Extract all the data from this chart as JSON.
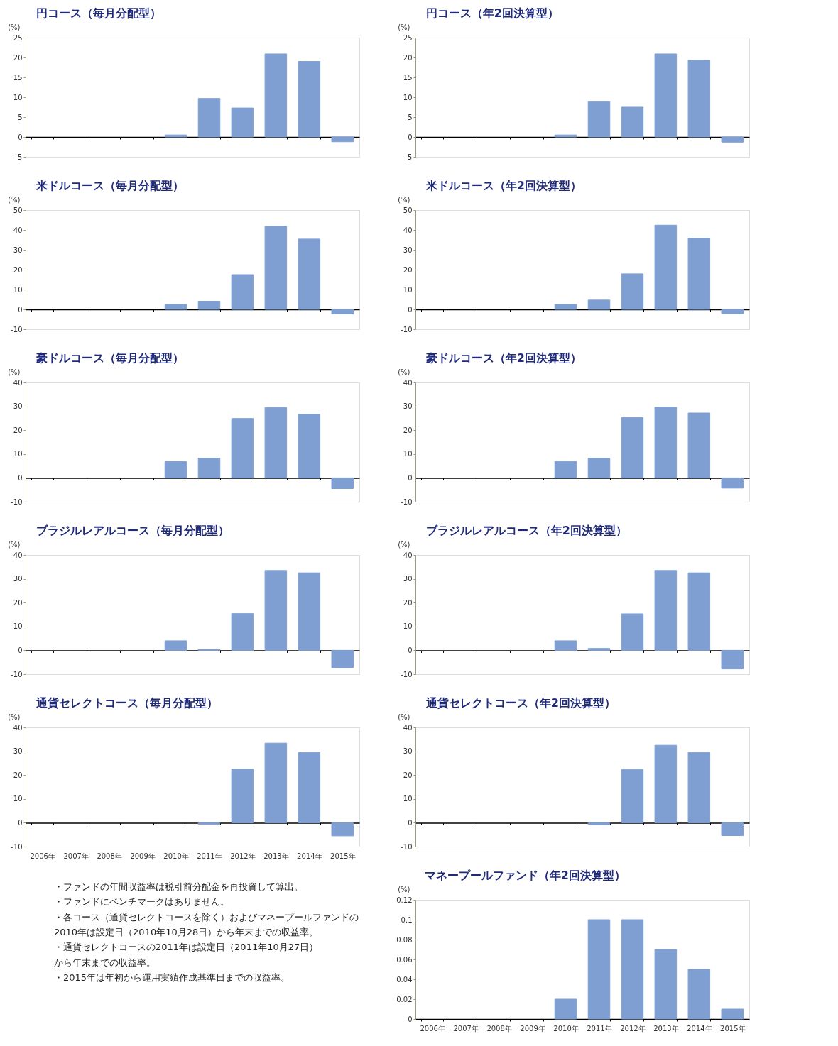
{
  "chart_data": [
    {
      "type": "bar",
      "title": "円コース（毎月分配型）",
      "ylabel": "(%)",
      "categories": [
        "2006年",
        "2007年",
        "2008年",
        "2009年",
        "2010年",
        "2011年",
        "2012年",
        "2013年",
        "2014年",
        "2015年"
      ],
      "values": [
        null,
        null,
        null,
        null,
        0.5,
        9.7,
        7.3,
        20.9,
        19.0,
        -1.2
      ],
      "color": "#7f9fd2",
      "ylim": [
        -5,
        25
      ],
      "yticks": [
        -5,
        0,
        5,
        10,
        15,
        20,
        25
      ],
      "tick_labels": "y"
    },
    {
      "type": "bar",
      "title": "円コース（年2回決算型）",
      "ylabel": "(%)",
      "categories": [
        "2006年",
        "2007年",
        "2008年",
        "2009年",
        "2010年",
        "2011年",
        "2012年",
        "2013年",
        "2014年",
        "2015年"
      ],
      "values": [
        null,
        null,
        null,
        null,
        0.5,
        8.9,
        7.5,
        20.9,
        19.3,
        -1.3
      ],
      "color": "#7f9fd2",
      "ylim": [
        -5,
        25
      ],
      "yticks": [
        -5,
        0,
        5,
        10,
        15,
        20,
        25
      ],
      "tick_labels": "y"
    },
    {
      "type": "bar",
      "title": "米ドルコース（毎月分配型）",
      "ylabel": "(%)",
      "categories": [
        "2006年",
        "2007年",
        "2008年",
        "2009年",
        "2010年",
        "2011年",
        "2012年",
        "2013年",
        "2014年",
        "2015年"
      ],
      "values": [
        null,
        null,
        null,
        null,
        2.5,
        4.1,
        17.5,
        41.8,
        35.4,
        -2.3
      ],
      "color": "#7f9fd2",
      "ylim": [
        -10,
        50
      ],
      "yticks": [
        -10,
        0,
        10,
        20,
        30,
        40,
        50
      ],
      "tick_labels": "y"
    },
    {
      "type": "bar",
      "title": "米ドルコース（年2回決算型）",
      "ylabel": "(%)",
      "categories": [
        "2006年",
        "2007年",
        "2008年",
        "2009年",
        "2010年",
        "2011年",
        "2012年",
        "2013年",
        "2014年",
        "2015年"
      ],
      "values": [
        null,
        null,
        null,
        null,
        2.5,
        4.7,
        17.9,
        42.4,
        35.8,
        -2.2
      ],
      "color": "#7f9fd2",
      "ylim": [
        -10,
        50
      ],
      "yticks": [
        -10,
        0,
        10,
        20,
        30,
        40,
        50
      ],
      "tick_labels": "y"
    },
    {
      "type": "bar",
      "title": "豪ドルコース（毎月分配型）",
      "ylabel": "(%)",
      "categories": [
        "2006年",
        "2007年",
        "2008年",
        "2009年",
        "2010年",
        "2011年",
        "2012年",
        "2013年",
        "2014年",
        "2015年"
      ],
      "values": [
        null,
        null,
        null,
        null,
        6.8,
        8.3,
        24.9,
        29.5,
        26.7,
        -4.5
      ],
      "color": "#7f9fd2",
      "ylim": [
        -10,
        40
      ],
      "yticks": [
        -10,
        0,
        10,
        20,
        30,
        40
      ],
      "tick_labels": "y"
    },
    {
      "type": "bar",
      "title": "豪ドルコース（年2回決算型）",
      "ylabel": "(%)",
      "categories": [
        "2006年",
        "2007年",
        "2008年",
        "2009年",
        "2010年",
        "2011年",
        "2012年",
        "2013年",
        "2014年",
        "2015年"
      ],
      "values": [
        null,
        null,
        null,
        null,
        6.9,
        8.3,
        25.3,
        29.6,
        27.2,
        -4.3
      ],
      "color": "#7f9fd2",
      "ylim": [
        -10,
        40
      ],
      "yticks": [
        -10,
        0,
        10,
        20,
        30,
        40
      ],
      "tick_labels": "y"
    },
    {
      "type": "bar",
      "title": "ブラジルレアルコース（毎月分配型）",
      "ylabel": "(%)",
      "categories": [
        "2006年",
        "2007年",
        "2008年",
        "2009年",
        "2010年",
        "2011年",
        "2012年",
        "2013年",
        "2014年",
        "2015年"
      ],
      "values": [
        null,
        null,
        null,
        null,
        4.0,
        0.4,
        15.4,
        33.5,
        32.5,
        -7.3
      ],
      "color": "#7f9fd2",
      "ylim": [
        -10,
        40
      ],
      "yticks": [
        -10,
        0,
        10,
        20,
        30,
        40
      ],
      "tick_labels": "y"
    },
    {
      "type": "bar",
      "title": "ブラジルレアルコース（年2回決算型）",
      "ylabel": "(%)",
      "categories": [
        "2006年",
        "2007年",
        "2008年",
        "2009年",
        "2010年",
        "2011年",
        "2012年",
        "2013年",
        "2014年",
        "2015年"
      ],
      "values": [
        null,
        null,
        null,
        null,
        4.0,
        0.8,
        15.3,
        33.5,
        32.5,
        -7.8
      ],
      "color": "#7f9fd2",
      "ylim": [
        -10,
        40
      ],
      "yticks": [
        -10,
        0,
        10,
        20,
        30,
        40
      ],
      "tick_labels": "y"
    },
    {
      "type": "bar",
      "title": "通貨セレクトコース（毎月分配型）",
      "ylabel": "(%)",
      "categories": [
        "2006年",
        "2007年",
        "2008年",
        "2009年",
        "2010年",
        "2011年",
        "2012年",
        "2013年",
        "2014年",
        "2015年"
      ],
      "values": [
        null,
        null,
        null,
        null,
        null,
        -0.6,
        22.5,
        33.4,
        29.4,
        -5.5
      ],
      "color": "#7f9fd2",
      "ylim": [
        -10,
        40
      ],
      "yticks": [
        -10,
        0,
        10,
        20,
        30,
        40
      ]
    },
    {
      "type": "bar",
      "title": "通貨セレクトコース（年2回決算型）",
      "ylabel": "(%)",
      "categories": [
        "2006年",
        "2007年",
        "2008年",
        "2009年",
        "2010年",
        "2011年",
        "2012年",
        "2013年",
        "2014年",
        "2015年"
      ],
      "values": [
        null,
        null,
        null,
        null,
        null,
        -0.9,
        22.4,
        32.5,
        29.5,
        -5.4
      ],
      "color": "#7f9fd2",
      "ylim": [
        -10,
        40
      ],
      "yticks": [
        -10,
        0,
        10,
        20,
        30,
        40
      ],
      "tick_labels": "y"
    },
    {
      "type": "other",
      "annotations": [
        "・ファンドの年間収益率は税引前分配金を再投資して算出。",
        "・ファンドにベンチマークはありません。",
        "・各コース（通貨セレクトコースを除く）およびマネープールファンドの2010年は設定日（2010年10月28日）から年末までの収益率。",
        "・通貨セレクトコースの2011年は設定日（2011年10月27日）から年末までの収益率。",
        "・2015年は年初から運用実績作成基準日までの収益率。"
      ]
    },
    {
      "type": "bar",
      "title": "マネープールファンド（年2回決算型）",
      "ylabel": "(%)",
      "categories": [
        "2006年",
        "2007年",
        "2008年",
        "2009年",
        "2010年",
        "2011年",
        "2012年",
        "2013年",
        "2014年",
        "2015年"
      ],
      "values": [
        null,
        null,
        null,
        null,
        0.02,
        0.1,
        0.1,
        0.07,
        0.05,
        0.01
      ],
      "color": "#7f9fd2",
      "ylim": [
        0,
        0.12
      ],
      "yticks": [
        0,
        0.02,
        0.04,
        0.06,
        0.08,
        0.1,
        0.12
      ]
    }
  ]
}
